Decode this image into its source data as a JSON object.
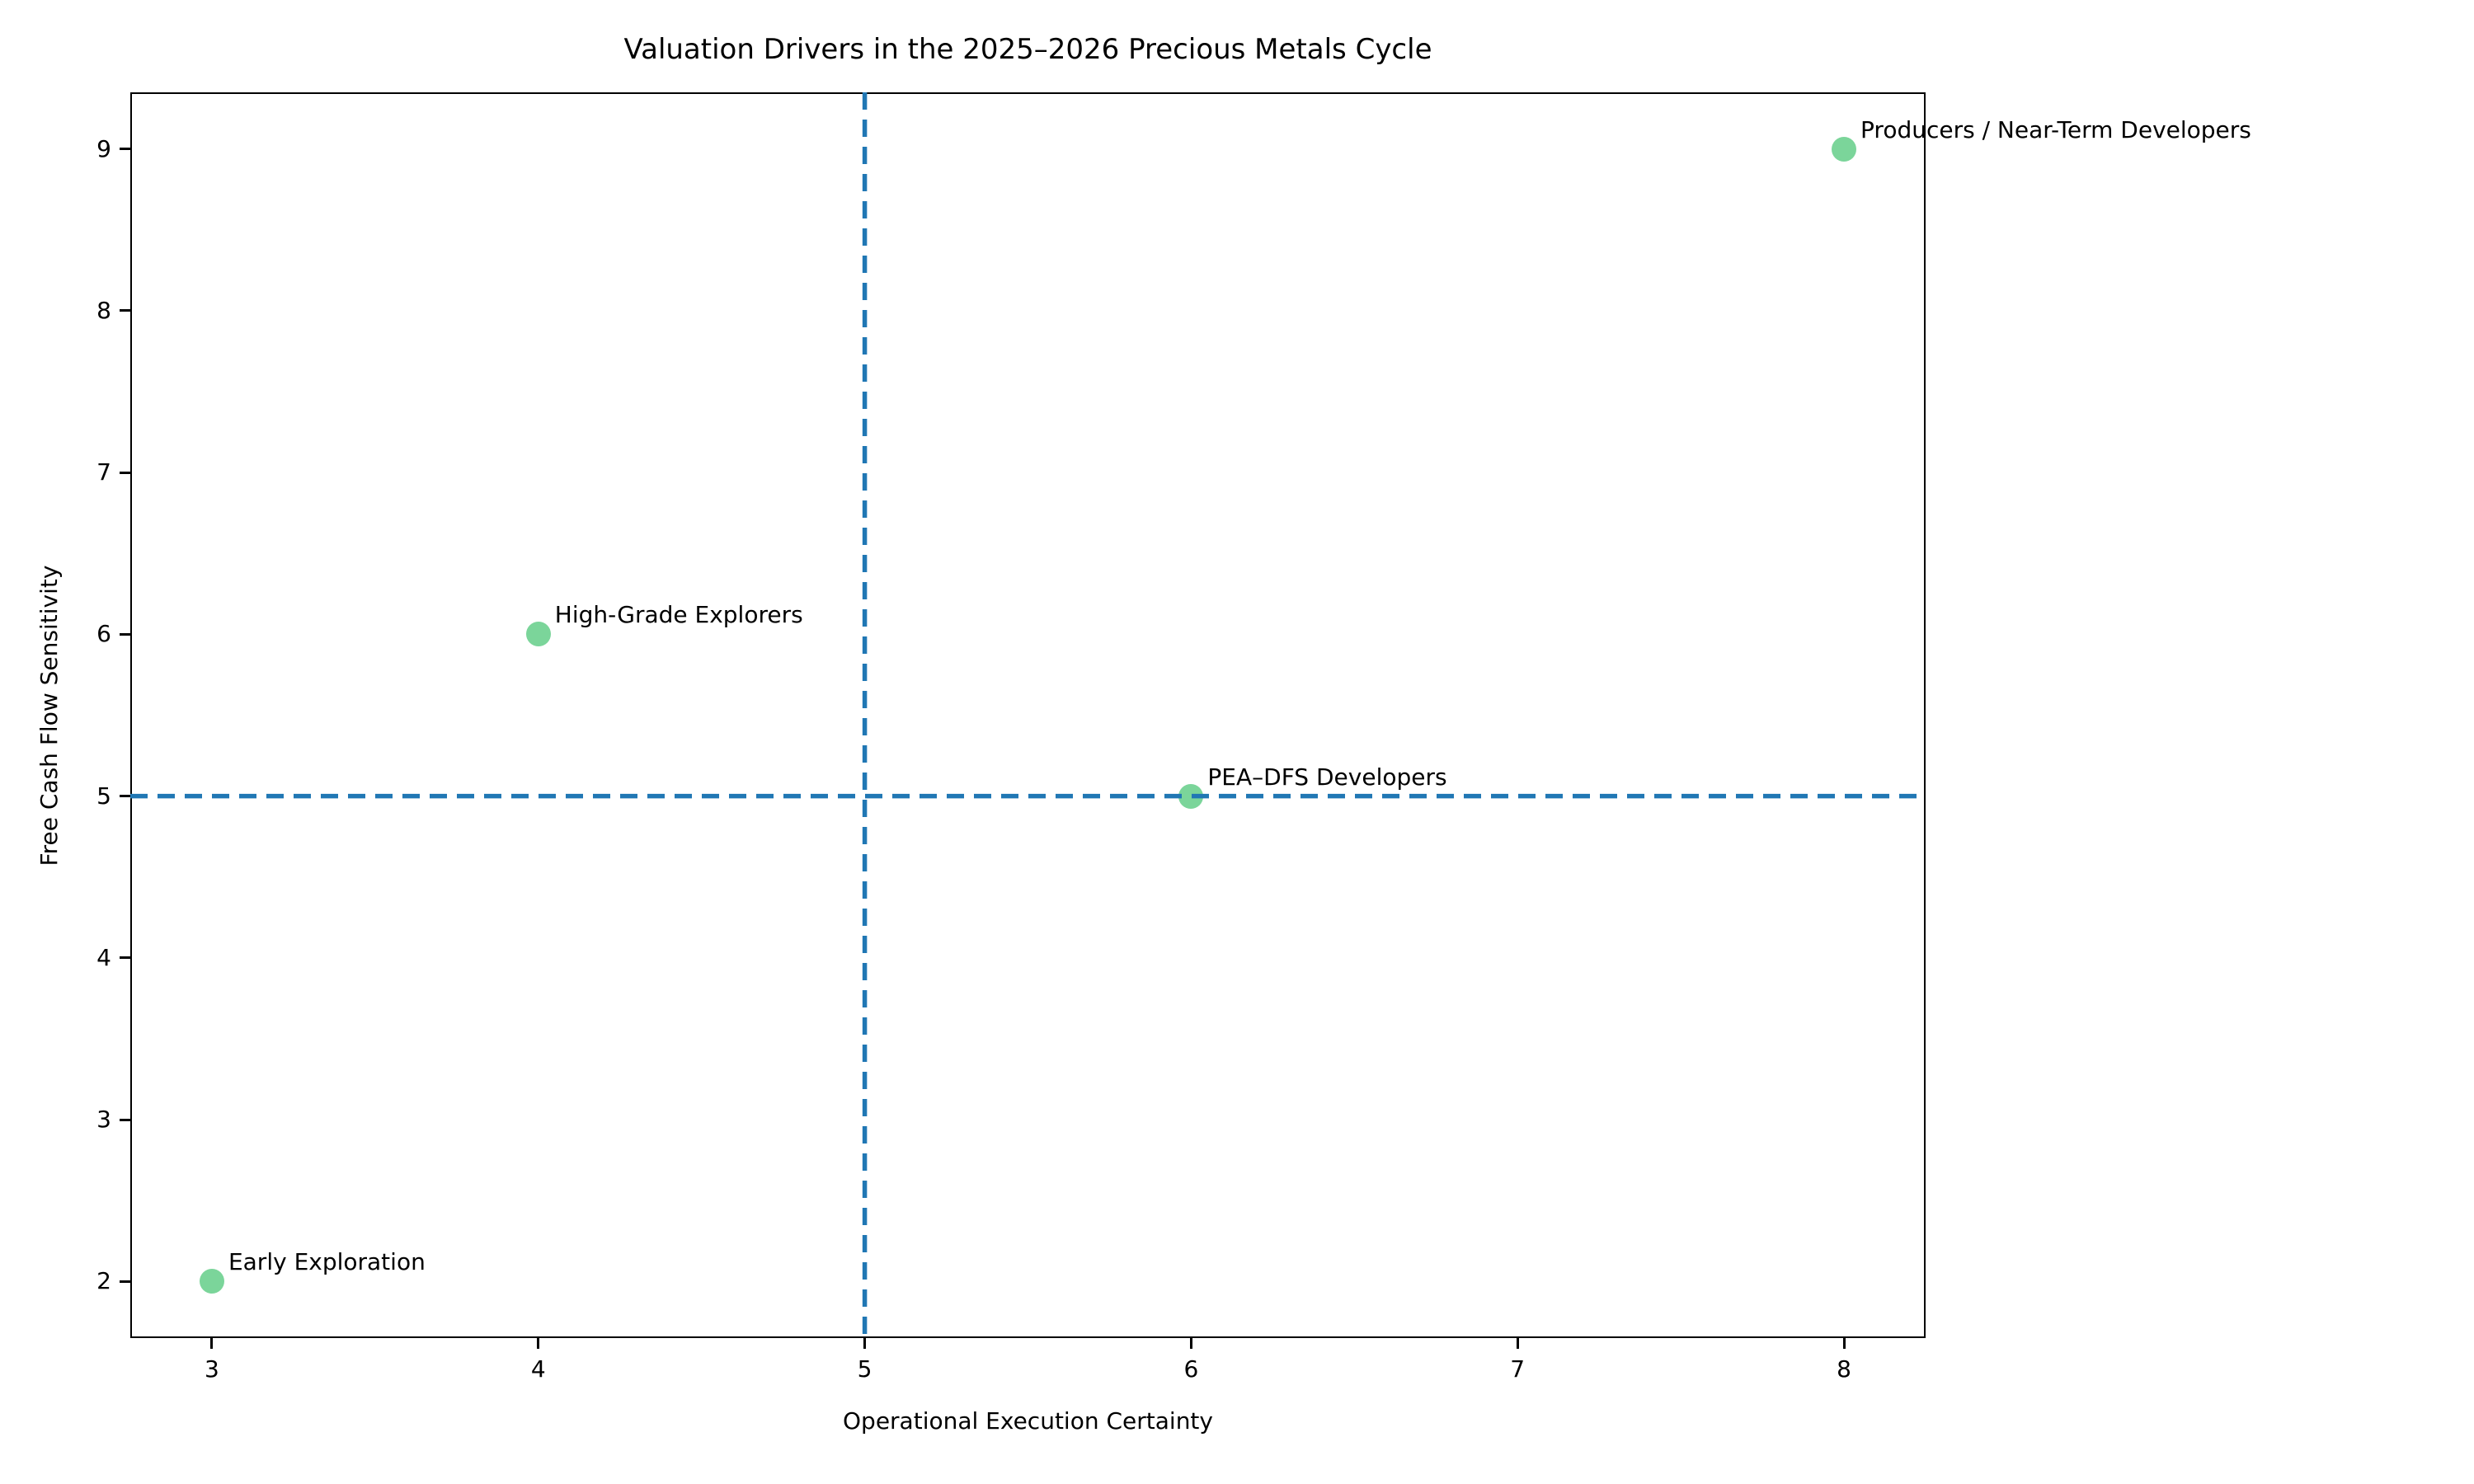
{
  "chart_data": {
    "type": "scatter",
    "title": "Valuation Drivers in the 2025–2026 Precious Metals Cycle",
    "xlabel": "Operational Execution Certainty",
    "ylabel": "Free Cash Flow Sensitivity",
    "xlim": [
      2.75,
      8.25
    ],
    "ylim": [
      1.65,
      9.35
    ],
    "x_ticks": [
      3,
      4,
      5,
      6,
      7,
      8
    ],
    "y_ticks": [
      2,
      3,
      4,
      5,
      6,
      7,
      8,
      9
    ],
    "grid": false,
    "legend": "none",
    "point_color": "#7bd59a",
    "refline_color": "#2077b4",
    "points": [
      {
        "label": "Early Exploration",
        "x": 3,
        "y": 2
      },
      {
        "label": "High-Grade Explorers",
        "x": 4,
        "y": 6
      },
      {
        "label": "PEA–DFS Developers",
        "x": 6,
        "y": 5
      },
      {
        "label": "Producers / Near-Term Developers",
        "x": 8,
        "y": 9
      }
    ],
    "reference_lines": [
      {
        "orientation": "vertical",
        "value": 5,
        "style": "dashed"
      },
      {
        "orientation": "horizontal",
        "value": 5,
        "style": "dashed"
      }
    ]
  }
}
